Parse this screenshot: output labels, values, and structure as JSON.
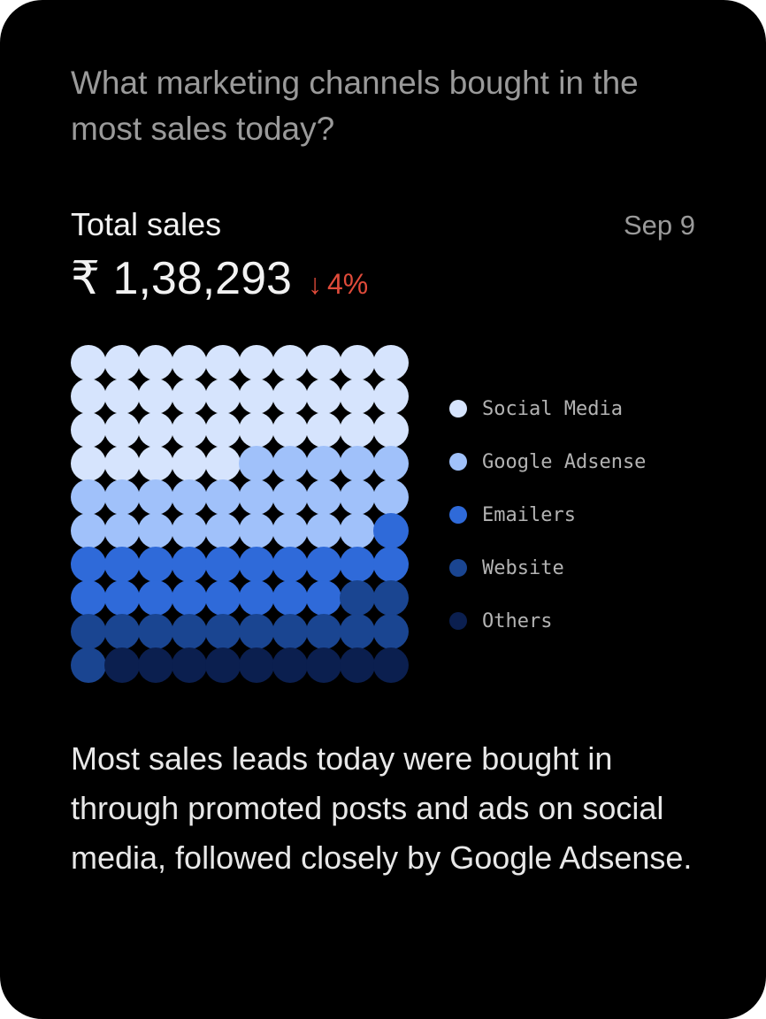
{
  "question": "What marketing channels bought in the most sales today?",
  "total_label": "Total sales",
  "date": "Sep 9",
  "amount": "₹ 1,38,293",
  "change": {
    "arrow": "↓",
    "value": "4%"
  },
  "summary": "Most sales leads today were bought in through promoted posts and ads on social media, followed closely by Google Adsense.",
  "colors": {
    "background": "#000000",
    "negative": "#e04b3a",
    "grid_dot": "#000000"
  },
  "chart_data": {
    "type": "waffle",
    "grid": {
      "rows": 10,
      "cols": 10,
      "fill_order": "row-major from top-left"
    },
    "unit": "percent of total sales per dot",
    "series": [
      {
        "name": "Social Media",
        "value": 35,
        "color": "#d6e4fd"
      },
      {
        "name": "Google Adsense",
        "value": 24,
        "color": "#a0c1fa"
      },
      {
        "name": "Emailers",
        "value": 19,
        "color": "#2f6ad9"
      },
      {
        "name": "Website",
        "value": 13,
        "color": "#1a4591"
      },
      {
        "name": "Others",
        "value": 9,
        "color": "#0b1f4f"
      }
    ],
    "legend_position": "right"
  }
}
